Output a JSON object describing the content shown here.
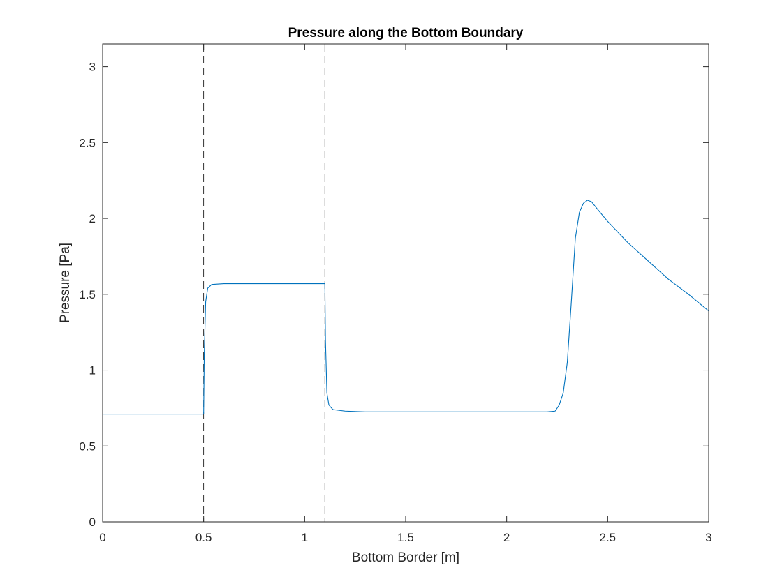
{
  "chart_data": {
    "type": "line",
    "title": "Pressure along the Bottom Boundary",
    "xlabel": "Bottom Border [m]",
    "ylabel": "Pressure [Pa]",
    "xlim": [
      0,
      3
    ],
    "ylim": [
      0,
      3.15
    ],
    "xticks": [
      0,
      0.5,
      1,
      1.5,
      2,
      2.5,
      3
    ],
    "xtick_labels": [
      "0",
      "0.5",
      "1",
      "1.5",
      "2",
      "2.5",
      "3"
    ],
    "yticks": [
      0,
      0.5,
      1,
      1.5,
      2,
      2.5,
      3
    ],
    "ytick_labels": [
      "0",
      "0.5",
      "1",
      "1.5",
      "2",
      "2.5",
      "3"
    ],
    "grid": false,
    "series_color": "#0072BD",
    "reference_lines": [
      {
        "x": 0.5,
        "style": "dashed",
        "color": "#000000"
      },
      {
        "x": 1.1,
        "style": "dashed",
        "color": "#000000"
      }
    ],
    "series": [
      {
        "x": [
          0,
          0.1,
          0.2,
          0.3,
          0.4,
          0.5,
          0.503,
          0.51,
          0.52,
          0.54,
          0.6,
          0.7,
          0.8,
          0.9,
          1.0,
          1.1,
          1.103,
          1.11,
          1.12,
          1.14,
          1.2,
          1.3,
          1.5,
          1.7,
          1.9,
          2.1,
          2.2,
          2.24,
          2.26,
          2.28,
          2.3,
          2.32,
          2.34,
          2.36,
          2.38,
          2.4,
          2.42,
          2.45,
          2.5,
          2.6,
          2.7,
          2.8,
          2.9,
          3.0
        ],
        "y": [
          0.71,
          0.71,
          0.71,
          0.71,
          0.71,
          0.71,
          1.1,
          1.45,
          1.54,
          1.565,
          1.57,
          1.57,
          1.57,
          1.57,
          1.57,
          1.57,
          1.2,
          0.85,
          0.77,
          0.74,
          0.73,
          0.725,
          0.725,
          0.725,
          0.725,
          0.725,
          0.725,
          0.73,
          0.77,
          0.85,
          1.05,
          1.45,
          1.87,
          2.04,
          2.1,
          2.12,
          2.11,
          2.06,
          1.98,
          1.84,
          1.72,
          1.6,
          1.5,
          1.39
        ]
      }
    ]
  }
}
